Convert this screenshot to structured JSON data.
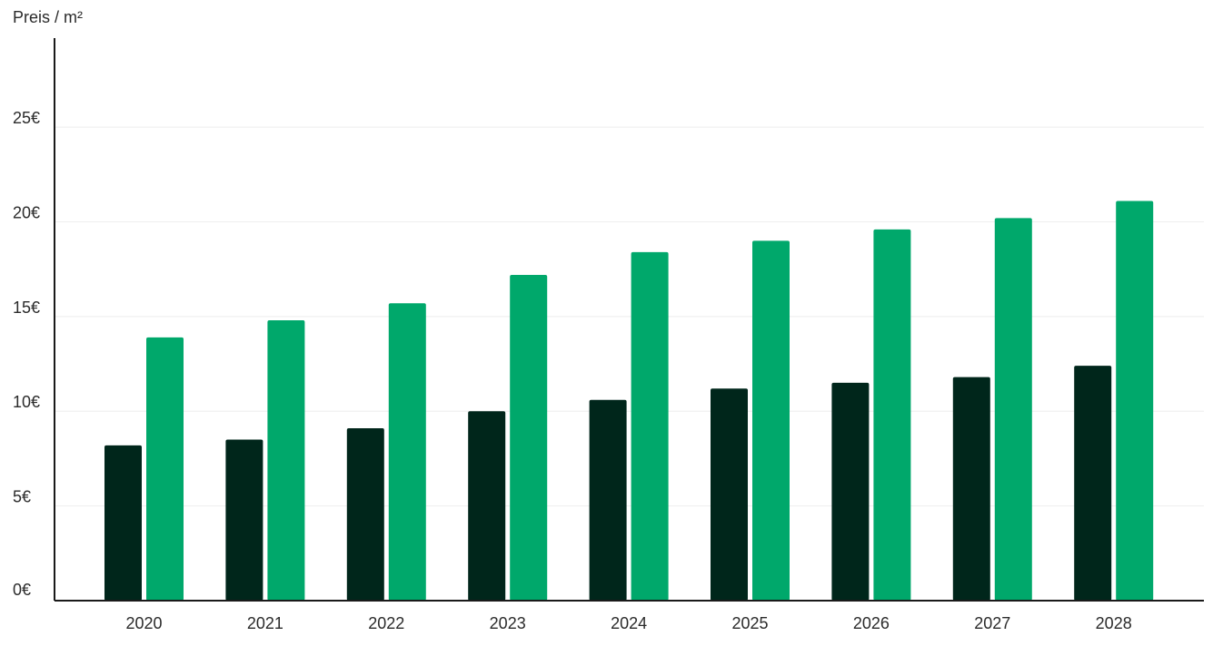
{
  "chart_data": {
    "type": "bar",
    "ylabel": "Preis / m²",
    "xlabel": "",
    "categories": [
      "2020",
      "2021",
      "2022",
      "2023",
      "2024",
      "2025",
      "2026",
      "2027",
      "2028"
    ],
    "series": [
      {
        "values": [
          8.2,
          8.5,
          9.1,
          10.0,
          10.6,
          11.2,
          11.5,
          11.8,
          12.4
        ]
      },
      {
        "values": [
          13.9,
          14.8,
          15.7,
          17.2,
          18.4,
          19.0,
          19.6,
          20.2,
          21.1
        ]
      }
    ],
    "ylim": [
      0,
      25
    ],
    "yticks": [
      0,
      5,
      10,
      15,
      20,
      25
    ],
    "ytick_labels": [
      "0€",
      "5€",
      "10€",
      "15€",
      "20€",
      "25€"
    ],
    "grid": true,
    "colors": {
      "series_0": "#00261b",
      "series_1": "#00a86b",
      "grid": "#eeeeee",
      "axis": "#1a1a1a"
    }
  }
}
